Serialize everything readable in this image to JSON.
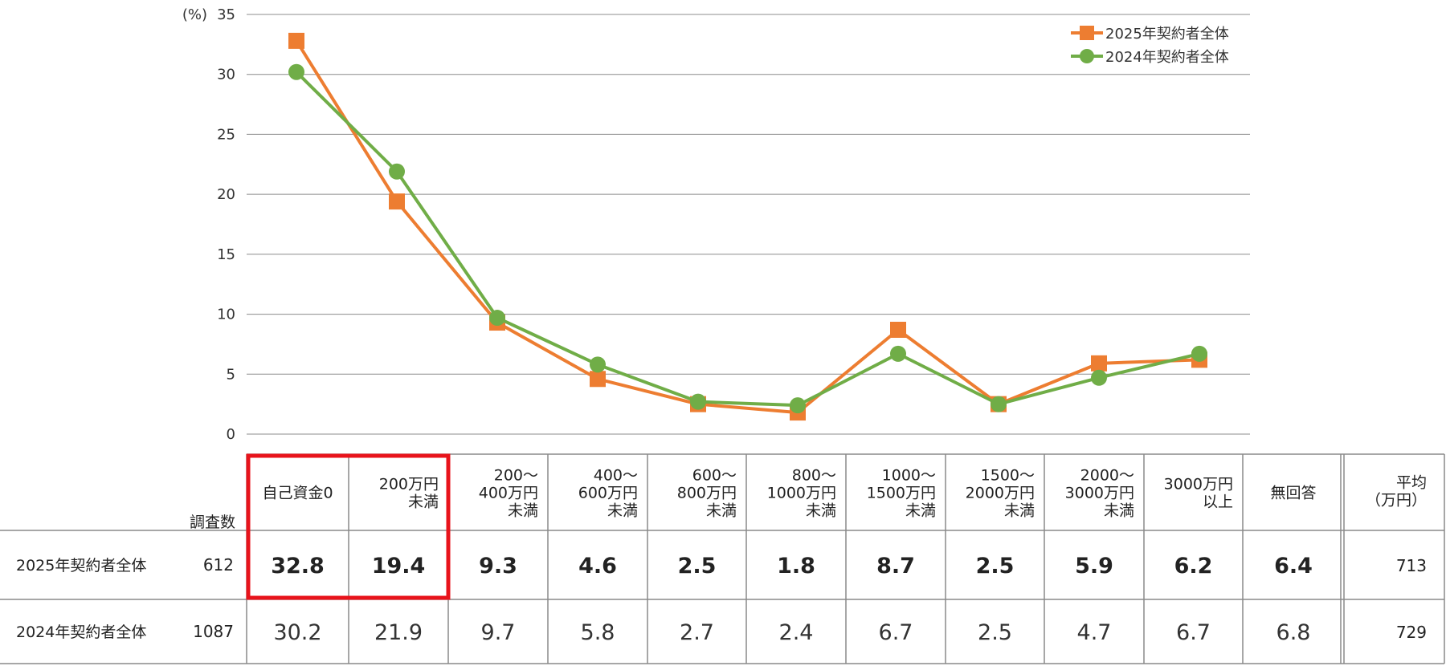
{
  "chart_data": {
    "type": "line",
    "y_unit_label": "(%)",
    "ylim": [
      0,
      35
    ],
    "yticks": [
      0,
      5,
      10,
      15,
      20,
      25,
      30,
      35
    ],
    "grid": true,
    "legend_position": "top-right",
    "categories": [
      "自己資金0",
      "200万円\n未満",
      "200～\n400万円\n未満",
      "400～\n600万円\n未満",
      "600～\n800万円\n未満",
      "800～\n1000万円\n未満",
      "1000～\n1500万円\n未満",
      "1500～\n2000万円\n未満",
      "2000～\n3000万円\n未満",
      "3000万円\n以上",
      "無回答"
    ],
    "plotted_count": 10,
    "series": [
      {
        "name": "2025年契約者全体",
        "color": "#ED7D31",
        "marker": "square",
        "values": [
          32.8,
          19.4,
          9.3,
          4.6,
          2.5,
          1.8,
          8.7,
          2.5,
          5.9,
          6.2,
          6.4
        ]
      },
      {
        "name": "2024年契約者全体",
        "color": "#70AD47",
        "marker": "circle",
        "values": [
          30.2,
          21.9,
          9.7,
          5.8,
          2.7,
          2.4,
          6.7,
          2.5,
          4.7,
          6.7,
          6.8
        ]
      }
    ]
  },
  "table": {
    "count_header": "調査数",
    "average_header": "平均\n（万円）",
    "rows": [
      {
        "label": "2025年契約者全体",
        "count": "612",
        "average": "713"
      },
      {
        "label": "2024年契約者全体",
        "count": "1087",
        "average": "729"
      }
    ]
  },
  "colors": {
    "highlight_border": "#E8131B",
    "series_2025": "#ED7D31",
    "series_2024": "#70AD47"
  }
}
